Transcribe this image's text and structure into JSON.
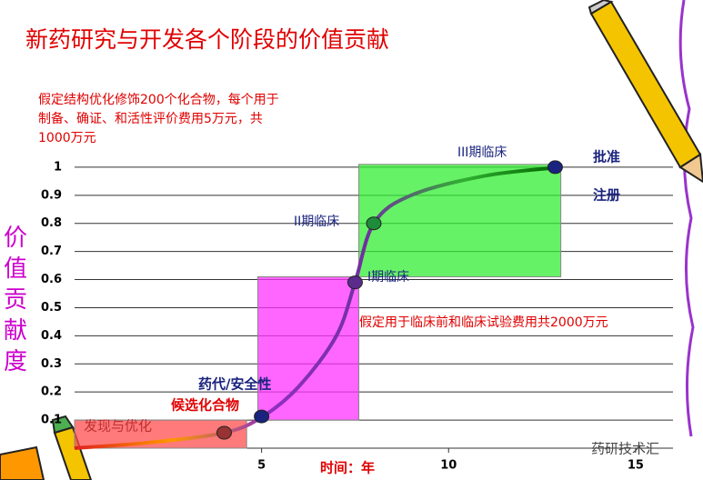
{
  "chart_data": {
    "type": "line",
    "title": "新药研究与开发各个阶段的价值贡献",
    "note": "假定结构优化修饰200个化合物，每个用于制备、确证、和活性评价费用5万元，共1000万元",
    "footnote": "假定用于临床前和临床试验费用共2000万元",
    "x_label": "时间：年",
    "y_label": "价值贡献度",
    "watermark": "药研技术汇",
    "xlim": [
      0,
      16
    ],
    "ylim": [
      0,
      1.1
    ],
    "xticks": [
      5,
      10,
      15
    ],
    "yticks": [
      0.1,
      0.2,
      0.3,
      0.4,
      0.5,
      0.6,
      0.7,
      0.8,
      0.9,
      1
    ],
    "grid": true,
    "regions": [
      {
        "name": "发现与优化",
        "color": "#ff4d4d",
        "x0": 0,
        "x1": 4.6,
        "y0": 0,
        "y1": 0.1
      },
      {
        "name": "药代/安全性",
        "color": "#ff33ff",
        "x0": 4.9,
        "x1": 7.6,
        "y0": 0.1,
        "y1": 0.61
      },
      {
        "name": "III期临床",
        "color": "#33ee33",
        "x0": 7.6,
        "x1": 13,
        "y0": 0.61,
        "y1": 1.01
      }
    ],
    "series": [
      {
        "gradient": [
          "#e02020",
          "#ff9900",
          "#9030c0",
          "#7030a0",
          "#30b030",
          "#006400"
        ],
        "x": [
          0,
          2,
          4,
          5,
          6,
          7,
          7.5,
          8,
          9,
          11,
          13
        ],
        "values": [
          0,
          0.02,
          0.055,
          0.11,
          0.22,
          0.4,
          0.59,
          0.8,
          0.9,
          0.97,
          1
        ]
      }
    ],
    "markers": {
      "x": [
        4,
        5,
        7.5,
        8,
        12.85
      ],
      "values": [
        0.055,
        0.113,
        0.59,
        0.8,
        1
      ],
      "colors": [
        "#993333",
        "#1a237e",
        "#5b2c8e",
        "#1e8c3a",
        "#1a237e"
      ]
    },
    "labels": [
      "候选化合物",
      "I期临床",
      "II期临床",
      "批准",
      "注册"
    ]
  }
}
